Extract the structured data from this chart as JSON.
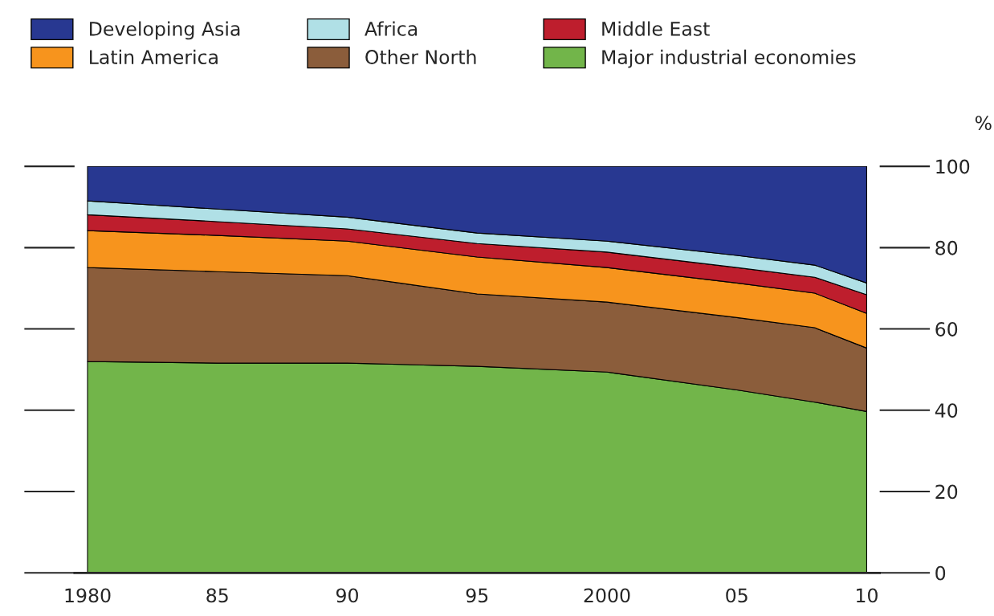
{
  "chart_data": {
    "type": "area",
    "stacked": true,
    "ylabel": "%",
    "legend": "top",
    "x": [
      1980,
      1985,
      1990,
      1995,
      2000,
      2005,
      2008,
      2010
    ],
    "series": [
      {
        "name": "Major industrial economies",
        "color": "#72b54a",
        "values": [
          52.0,
          51.6,
          51.6,
          50.8,
          49.4,
          45.0,
          42.0,
          39.7
        ]
      },
      {
        "name": "Other North",
        "color": "#8b5d3b",
        "values": [
          23.1,
          22.5,
          21.5,
          17.8,
          17.2,
          17.8,
          18.3,
          15.6
        ]
      },
      {
        "name": "Latin America",
        "color": "#f7941d",
        "values": [
          9.1,
          8.9,
          8.5,
          9.1,
          8.5,
          8.5,
          8.5,
          8.5
        ]
      },
      {
        "name": "Middle East",
        "color": "#be1e2d",
        "values": [
          3.9,
          3.4,
          3.0,
          3.3,
          3.8,
          3.8,
          3.9,
          4.6
        ]
      },
      {
        "name": "Africa",
        "color": "#b0e0e6",
        "values": [
          3.4,
          3.1,
          2.9,
          2.6,
          2.7,
          3.0,
          3.0,
          2.9
        ]
      },
      {
        "name": "Developing Asia",
        "color": "#283891",
        "values": [
          8.5,
          10.5,
          12.5,
          16.4,
          18.4,
          21.9,
          24.3,
          28.7
        ]
      }
    ],
    "xlim": [
      1979.5,
      2010.5
    ],
    "xticks": [
      1980,
      {
        "value": 1985,
        "label": "85"
      },
      {
        "value": 1990,
        "label": "90"
      },
      {
        "value": 1995,
        "label": "95"
      },
      2000,
      {
        "value": 2005,
        "label": "05"
      },
      {
        "value": 2010,
        "label": "10"
      }
    ],
    "ylim": [
      0,
      100
    ],
    "yticks": [
      0,
      20,
      40,
      60,
      80,
      100
    ],
    "grid": false
  }
}
